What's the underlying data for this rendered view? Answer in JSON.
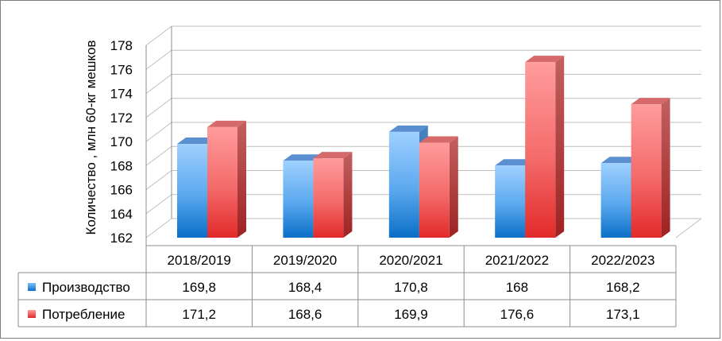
{
  "chart_data": {
    "type": "bar",
    "categories": [
      "2018/2019",
      "2019/2020",
      "2020/2021",
      "2021/2022",
      "2022/2023"
    ],
    "ylabel": "Количество , млн 60-кг мешков",
    "ylim": [
      162,
      178
    ],
    "y_ticks": [
      162,
      164,
      166,
      168,
      170,
      172,
      174,
      176,
      178
    ],
    "grid": true,
    "legend": "data-table-left",
    "series": [
      {
        "name": "Производство",
        "values": [
          169.8,
          168.4,
          170.8,
          168,
          168.2
        ],
        "labels": [
          "169,8",
          "168,4",
          "170,8",
          "168",
          "168,2"
        ],
        "color": "#4a9fe8"
      },
      {
        "name": "Потребление",
        "values": [
          171.2,
          168.6,
          169.9,
          176.6,
          173.1
        ],
        "labels": [
          "171,2",
          "168,6",
          "169,9",
          "176,6",
          "173,1"
        ],
        "color": "#f05a5a"
      }
    ]
  }
}
